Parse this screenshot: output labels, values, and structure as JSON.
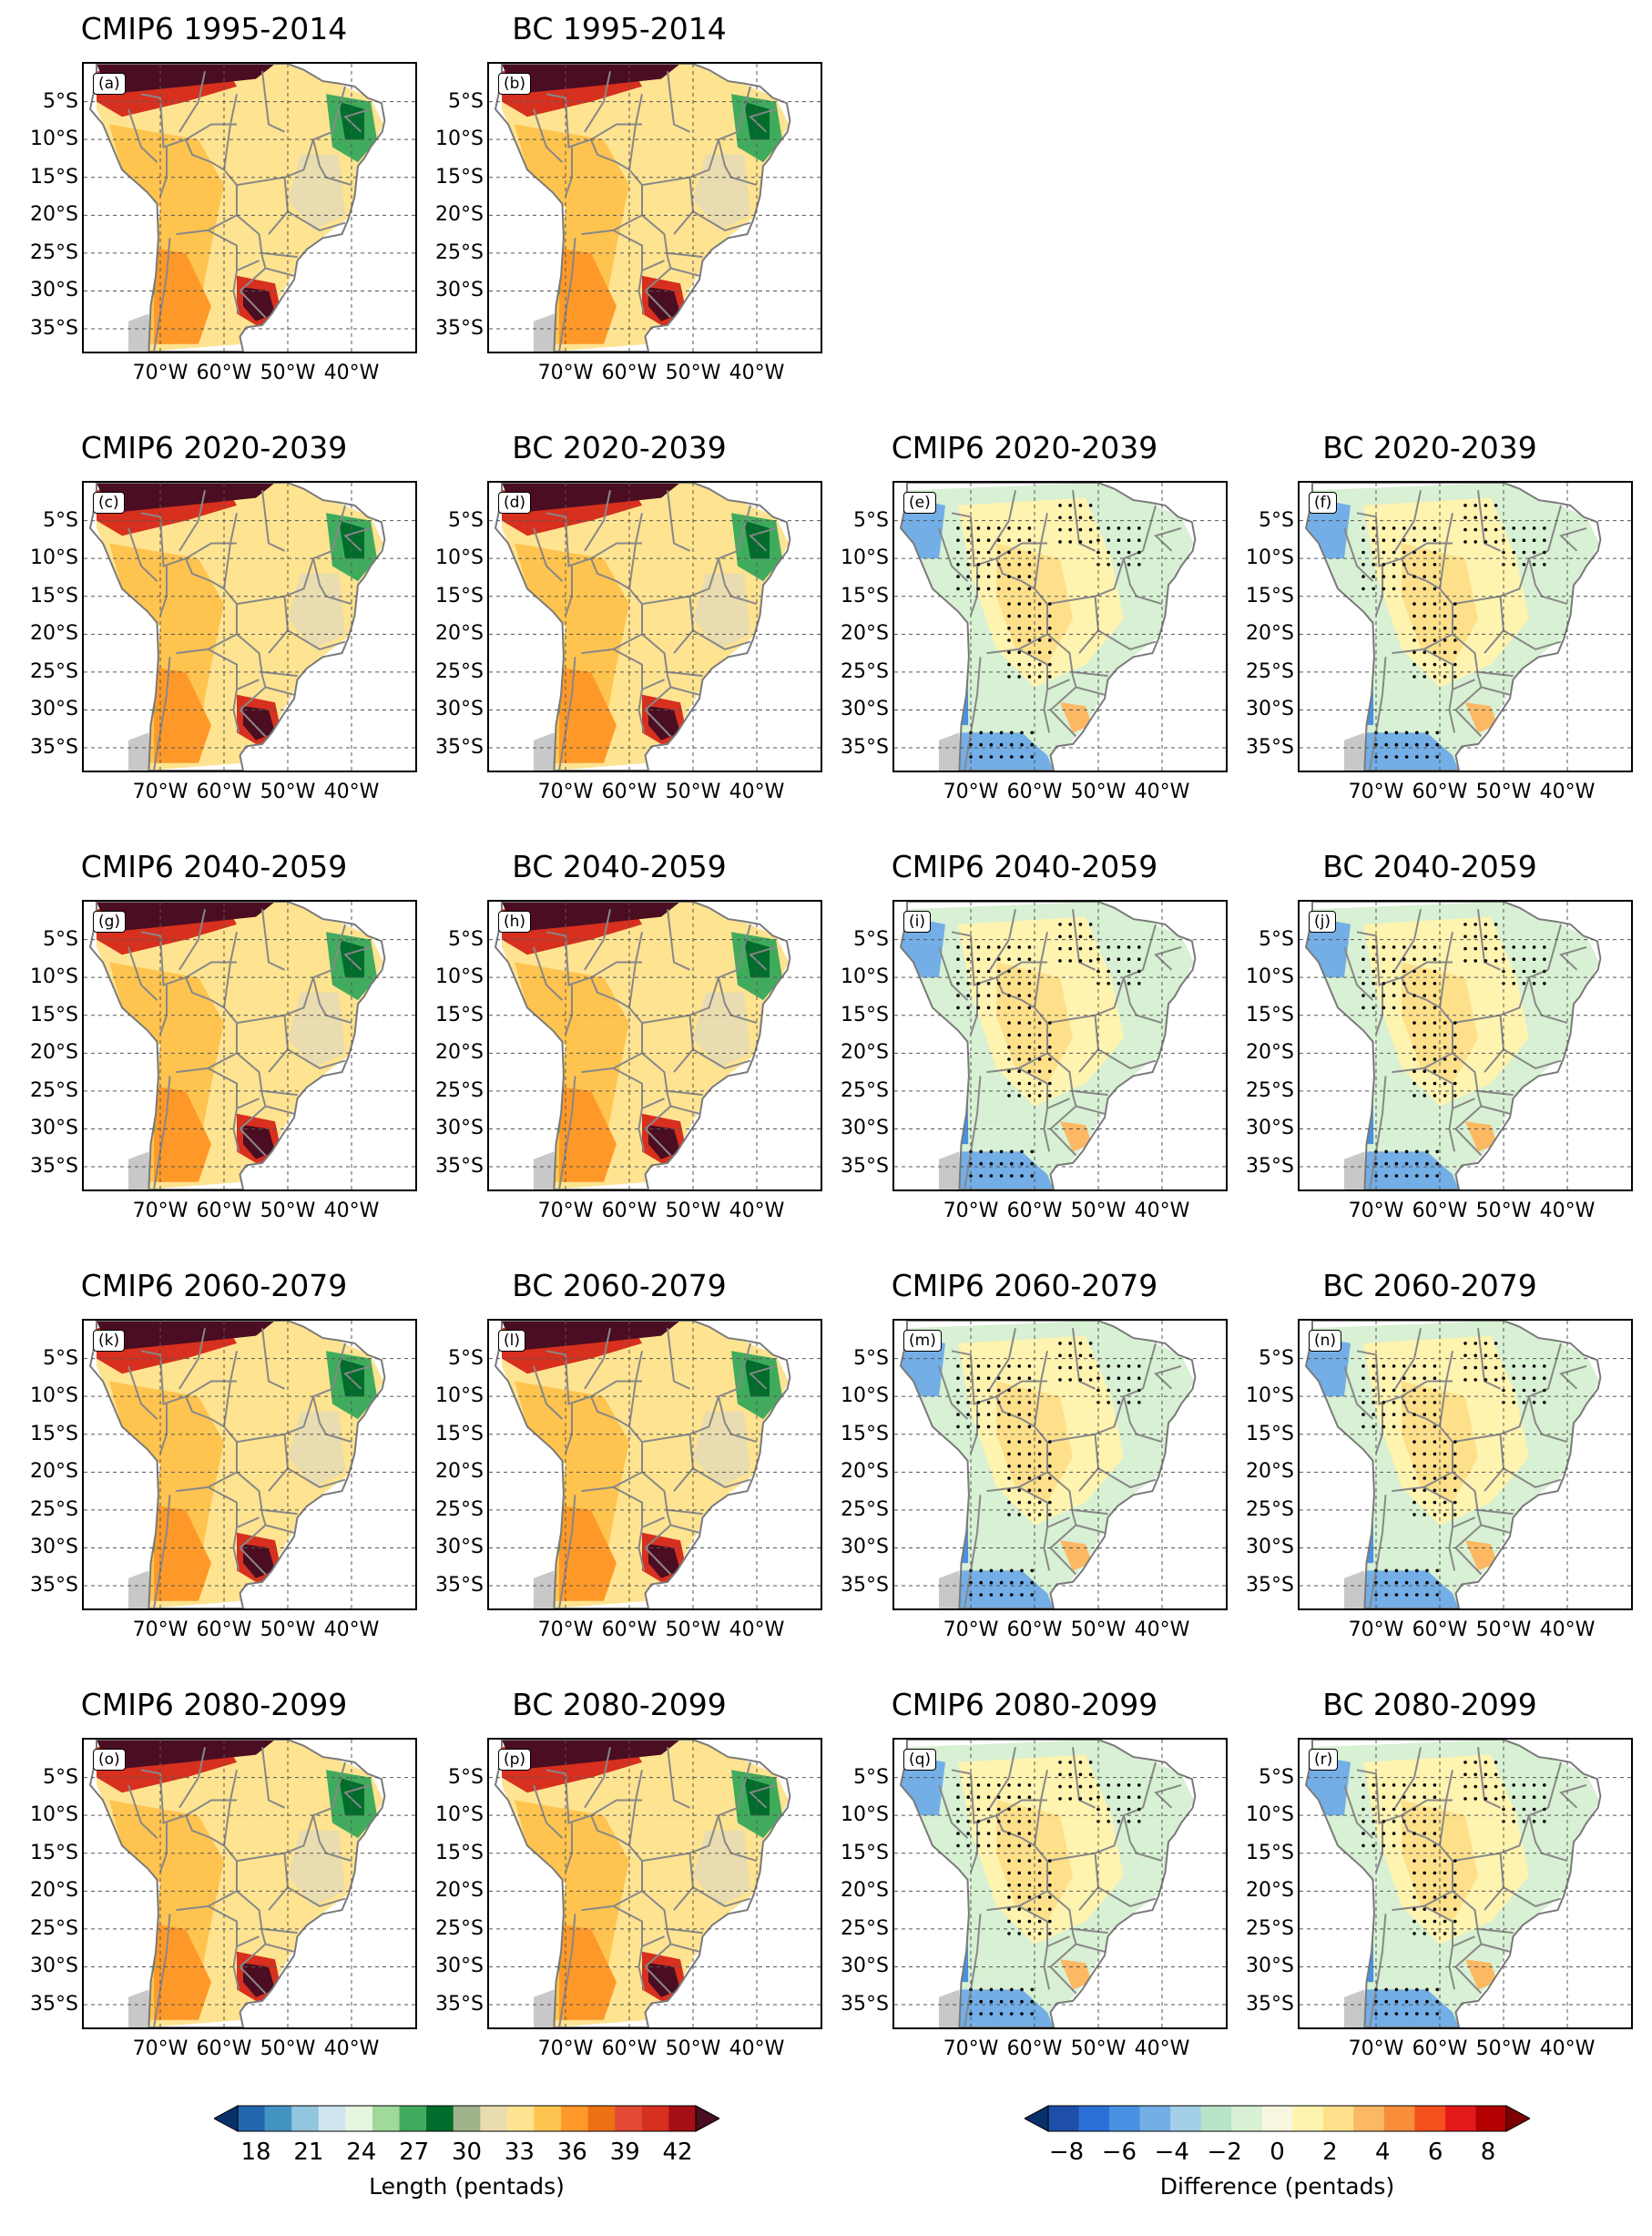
{
  "figure": {
    "lat_labels": [
      "5°S",
      "10°S",
      "15°S",
      "20°S",
      "25°S",
      "30°S",
      "35°S"
    ],
    "lon_labels": [
      "70°W",
      "60°W",
      "50°W",
      "40°W"
    ],
    "panels": [
      {
        "id": "a",
        "label": "(a)",
        "title": "CMIP6 1995-2014",
        "kind": "length",
        "row": 0,
        "col": 0
      },
      {
        "id": "b",
        "label": "(b)",
        "title": "BC 1995-2014",
        "kind": "length",
        "row": 0,
        "col": 1
      },
      {
        "id": "c",
        "label": "(c)",
        "title": "CMIP6 2020-2039",
        "kind": "length",
        "row": 1,
        "col": 0
      },
      {
        "id": "d",
        "label": "(d)",
        "title": "BC 2020-2039",
        "kind": "length",
        "row": 1,
        "col": 1
      },
      {
        "id": "e",
        "label": "(e)",
        "title": "CMIP6 2020-2039",
        "kind": "difference",
        "row": 1,
        "col": 2
      },
      {
        "id": "f",
        "label": "(f)",
        "title": "BC 2020-2039",
        "kind": "difference",
        "row": 1,
        "col": 3
      },
      {
        "id": "g",
        "label": "(g)",
        "title": "CMIP6 2040-2059",
        "kind": "length",
        "row": 2,
        "col": 0
      },
      {
        "id": "h",
        "label": "(h)",
        "title": "BC 2040-2059",
        "kind": "length",
        "row": 2,
        "col": 1
      },
      {
        "id": "i",
        "label": "(i)",
        "title": "CMIP6 2040-2059",
        "kind": "difference",
        "row": 2,
        "col": 2
      },
      {
        "id": "j",
        "label": "(j)",
        "title": "BC 2040-2059",
        "kind": "difference",
        "row": 2,
        "col": 3
      },
      {
        "id": "k",
        "label": "(k)",
        "title": "CMIP6 2060-2079",
        "kind": "length",
        "row": 3,
        "col": 0
      },
      {
        "id": "l",
        "label": "(l)",
        "title": "BC 2060-2079",
        "kind": "length",
        "row": 3,
        "col": 1
      },
      {
        "id": "m",
        "label": "(m)",
        "title": "CMIP6 2060-2079",
        "kind": "difference",
        "row": 3,
        "col": 2
      },
      {
        "id": "n",
        "label": "(n)",
        "title": "BC 2060-2079",
        "kind": "difference",
        "row": 3,
        "col": 3
      },
      {
        "id": "o",
        "label": "(o)",
        "title": "CMIP6 2080-2099",
        "kind": "length",
        "row": 4,
        "col": 0
      },
      {
        "id": "p",
        "label": "(p)",
        "title": "BC 2080-2099",
        "kind": "length",
        "row": 4,
        "col": 1
      },
      {
        "id": "q",
        "label": "(q)",
        "title": "CMIP6 2080-2099",
        "kind": "difference",
        "row": 4,
        "col": 2
      },
      {
        "id": "r",
        "label": "(r)",
        "title": "BC 2080-2099",
        "kind": "difference",
        "row": 4,
        "col": 3
      }
    ]
  },
  "colorbars": {
    "length": {
      "label": "Length (pentads)",
      "ticks": [
        "18",
        "21",
        "24",
        "27",
        "30",
        "33",
        "36",
        "39",
        "42"
      ],
      "range": [
        18,
        42
      ],
      "colors": [
        "#08306b",
        "#2166ac",
        "#4393c3",
        "#92c5de",
        "#d1e5f0",
        "#e5f5e0",
        "#a1d99b",
        "#41ab5d",
        "#006d2c",
        "#a0b48c",
        "#e8dcb0",
        "#fee391",
        "#fec44f",
        "#fe9929",
        "#ec7014",
        "#e34a33",
        "#d7301f",
        "#a50f15",
        "#4a0d21"
      ]
    },
    "difference": {
      "label": "Difference (pentads)",
      "ticks": [
        "−8",
        "−6",
        "−4",
        "−2",
        "0",
        "2",
        "4",
        "6",
        "8"
      ],
      "range": [
        -8,
        8
      ],
      "colors": [
        "#08306b",
        "#1d4fa8",
        "#2b6fd6",
        "#4a90e2",
        "#73aee6",
        "#a3cfe8",
        "#b7e4c7",
        "#d8f0d3",
        "#f7f7e0",
        "#fff3b0",
        "#fee08b",
        "#fdb863",
        "#f88d3a",
        "#f4511e",
        "#e31a1c",
        "#b30000",
        "#7f0000"
      ]
    }
  }
}
